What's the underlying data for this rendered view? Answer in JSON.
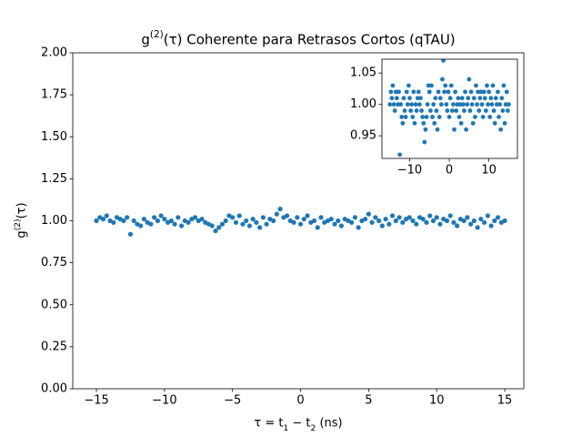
{
  "chart_data": {
    "type": "scatter",
    "title": "g(2)(τ) Coherente para Retrasos Cortos (qTAU)",
    "x_label": "τ = t1 − t2 (ns)",
    "y_label": "g(2)(τ)",
    "color": "#1f77b4",
    "x": [
      -15,
      -14.75,
      -14.5,
      -14.25,
      -14,
      -13.75,
      -13.5,
      -13.25,
      -13,
      -12.75,
      -12.5,
      -12.25,
      -12,
      -11.75,
      -11.5,
      -11.25,
      -11,
      -10.75,
      -10.5,
      -10.25,
      -10,
      -9.75,
      -9.5,
      -9.25,
      -9,
      -8.75,
      -8.5,
      -8.25,
      -8,
      -7.75,
      -7.5,
      -7.25,
      -7,
      -6.75,
      -6.5,
      -6.25,
      -6,
      -5.75,
      -5.5,
      -5.25,
      -5,
      -4.75,
      -4.5,
      -4.25,
      -4,
      -3.75,
      -3.5,
      -3.25,
      -3,
      -2.75,
      -2.5,
      -2.25,
      -2,
      -1.75,
      -1.5,
      -1.25,
      -1,
      -0.75,
      -0.5,
      -0.25,
      0,
      0.25,
      0.5,
      0.75,
      1,
      1.25,
      1.5,
      1.75,
      2,
      2.25,
      2.5,
      2.75,
      3,
      3.25,
      3.5,
      3.75,
      4,
      4.25,
      4.5,
      4.75,
      5,
      5.25,
      5.5,
      5.75,
      6,
      6.25,
      6.5,
      6.75,
      7,
      7.25,
      7.5,
      7.75,
      8,
      8.25,
      8.5,
      8.75,
      9,
      9.25,
      9.5,
      9.75,
      10,
      10.25,
      10.5,
      10.75,
      11,
      11.25,
      11.5,
      11.75,
      12,
      12.25,
      12.5,
      12.75,
      13,
      13.25,
      13.5,
      13.75,
      14,
      14.25,
      14.5,
      14.75,
      15
    ],
    "values": [
      1.0,
      1.02,
      1.01,
      1.03,
      1.0,
      0.99,
      1.02,
      1.01,
      1.0,
      1.02,
      0.92,
      1.0,
      0.98,
      0.97,
      1.01,
      0.99,
      0.98,
      1.02,
      1.0,
      1.03,
      1.01,
      0.99,
      1.0,
      0.98,
      1.02,
      0.97,
      1.0,
      0.99,
      1.01,
      1.02,
      1.0,
      1.01,
      0.99,
      0.98,
      0.97,
      0.94,
      0.96,
      0.98,
      1.0,
      1.03,
      1.02,
      0.99,
      1.03,
      0.98,
      1.0,
      0.97,
      1.01,
      0.99,
      0.96,
      1.02,
      0.98,
      1.01,
      1.0,
      1.04,
      1.07,
      1.02,
      1.03,
      1.0,
      0.99,
      1.02,
      0.98,
      1.01,
      1.03,
      0.99,
      1.0,
      0.96,
      1.02,
      0.99,
      1.0,
      1.01,
      0.98,
      1.0,
      0.97,
      1.01,
      1.0,
      0.99,
      1.02,
      0.96,
      1.0,
      1.01,
      1.04,
      0.99,
      1.02,
      1.0,
      0.97,
      1.01,
      0.98,
      1.03,
      1.0,
      1.02,
      0.99,
      1.01,
      1.02,
      1.0,
      0.98,
      1.02,
      1.01,
      0.99,
      1.03,
      1.0,
      1.02,
      0.98,
      1.01,
      1.0,
      1.03,
      0.99,
      0.97,
      1.01,
      1.0,
      1.02,
      0.98,
      1.0,
      0.96,
      1.01,
      0.99,
      1.03,
      0.97,
      1.0,
      1.02,
      0.99,
      1.0
    ],
    "xlim": [
      -16.74,
      16.4
    ],
    "ylim": [
      0,
      2
    ],
    "xticks": [
      {
        "value": -15,
        "label": "−15"
      },
      {
        "value": -10,
        "label": "−10"
      },
      {
        "value": -5,
        "label": "−5"
      },
      0,
      5,
      10,
      15
    ],
    "yticks": [
      {
        "value": 0,
        "label": "0.00"
      },
      {
        "value": 0.25,
        "label": "0.25"
      },
      {
        "value": 0.5,
        "label": "0.50"
      },
      {
        "value": 0.75,
        "label": "0.75"
      },
      {
        "value": 1,
        "label": "1.00"
      },
      {
        "value": 1.25,
        "label": "1.25"
      },
      {
        "value": 1.5,
        "label": "1.50"
      },
      {
        "value": 1.75,
        "label": "1.75"
      },
      {
        "value": 2,
        "label": "2.00"
      }
    ],
    "inset": {
      "xlim": [
        -17,
        17.2
      ],
      "ylim": [
        0.914,
        1.072
      ],
      "xticks": [
        {
          "value": -10,
          "label": "−10"
        },
        0,
        10
      ],
      "yticks": [
        {
          "value": 0.95,
          "label": "0.95"
        },
        {
          "value": 1,
          "label": "1.00"
        },
        {
          "value": 1.05,
          "label": "1.05"
        }
      ]
    }
  }
}
